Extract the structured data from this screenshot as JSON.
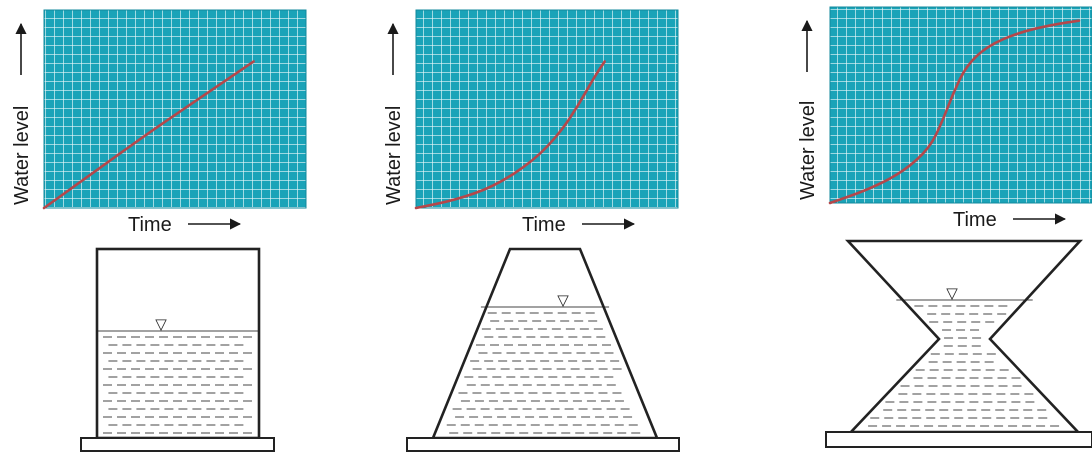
{
  "colors": {
    "grid_background": "#1aa3b8",
    "grid_lines": "#e9f7fa",
    "curve": "#b5474a",
    "water_dash": "#555555",
    "outline": "#222222"
  },
  "labels": {
    "x_axis": "Time",
    "y_axis": "Water level"
  },
  "water_surface_marker": "▽",
  "panels": [
    {
      "id": "straight",
      "vessel_shape": "straight-walled cylinder",
      "chart_data": {
        "type": "line",
        "xlabel": "Time",
        "ylabel": "Water level",
        "xlim": [
          0,
          1
        ],
        "ylim": [
          0,
          1
        ],
        "x": [
          0,
          0.2,
          0.4,
          0.6,
          0.8
        ],
        "series": [
          {
            "values": [
              0,
              0.19,
              0.38,
              0.56,
              0.74
            ]
          }
        ]
      }
    },
    {
      "id": "tapered",
      "vessel_shape": "narrowing toward the top",
      "chart_data": {
        "type": "line",
        "xlabel": "Time",
        "ylabel": "Water level",
        "xlim": [
          0,
          1
        ],
        "ylim": [
          0,
          1
        ],
        "x": [
          0,
          0.15,
          0.3,
          0.45,
          0.55,
          0.62,
          0.68,
          0.72
        ],
        "series": [
          {
            "values": [
              0,
              0.04,
              0.11,
              0.24,
              0.38,
              0.52,
              0.66,
              0.74
            ]
          }
        ]
      }
    },
    {
      "id": "hourglass",
      "vessel_shape": "hourglass",
      "chart_data": {
        "type": "line",
        "xlabel": "Time",
        "ylabel": "Water level",
        "xlim": [
          0,
          1
        ],
        "ylim": [
          0,
          1
        ],
        "x": [
          0,
          0.15,
          0.28,
          0.38,
          0.43,
          0.47,
          0.52,
          0.6,
          0.72,
          0.85,
          0.95
        ],
        "series": [
          {
            "values": [
              0,
              0.07,
              0.16,
              0.28,
              0.42,
              0.56,
              0.7,
              0.8,
              0.87,
              0.91,
              0.93
            ]
          }
        ]
      }
    }
  ]
}
